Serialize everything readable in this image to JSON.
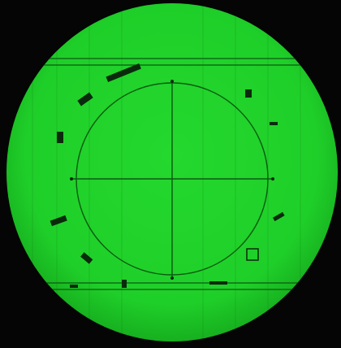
{
  "reticle": {
    "background_color": "#050505",
    "field_color": "#20d22a",
    "field_shade_color": "#18b820",
    "line_color": "#0b5a10",
    "mark_color": "#0a2a0c"
  }
}
